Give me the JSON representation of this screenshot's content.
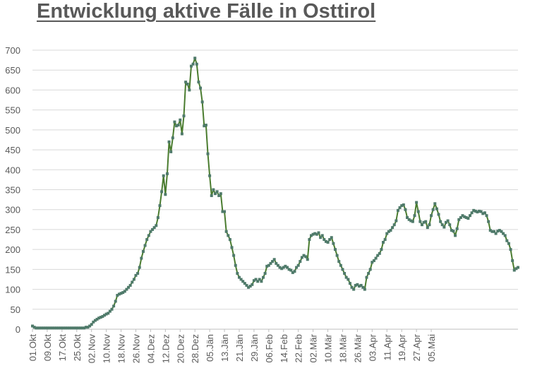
{
  "chart_data": {
    "type": "line",
    "title": "Entwicklung aktive Fälle in Osttirol",
    "xlabel": "",
    "ylabel": "",
    "ylim": [
      0,
      700
    ],
    "yticks": [
      0,
      50,
      100,
      150,
      200,
      250,
      300,
      350,
      400,
      450,
      500,
      550,
      600,
      650,
      700
    ],
    "grid": true,
    "legend": "none",
    "line_color": "#4a7c2f",
    "marker_color": "#4f7a6a",
    "xtick_labels": [
      "01.Okt",
      "09.Okt",
      "17.Okt",
      "25.Okt",
      "02.Nov",
      "10.Nov",
      "18.Nov",
      "26.Nov",
      "04.Dez",
      "12.Dez",
      "20.Dez",
      "28.Dez",
      "05.Jän",
      "13.Jän",
      "21.Jän",
      "29.Jän",
      "06.Feb",
      "14.Feb",
      "22.Feb",
      "02.Mär",
      "10.Mär",
      "18.Mär",
      "26.Mär",
      "03.Apr",
      "11.Apr",
      "19.Apr",
      "27.Apr",
      "05.Mai"
    ],
    "series": [
      {
        "x_start": "01.Okt",
        "x_end": "05.Mai",
        "values": [
          8,
          5,
          3,
          3,
          3,
          3,
          3,
          3,
          3,
          3,
          3,
          3,
          3,
          3,
          3,
          3,
          3,
          3,
          3,
          3,
          3,
          3,
          3,
          3,
          3,
          3,
          3,
          3,
          3,
          5,
          5,
          8,
          12,
          18,
          22,
          25,
          28,
          30,
          32,
          35,
          38,
          40,
          45,
          50,
          58,
          70,
          85,
          88,
          90,
          92,
          95,
          100,
          105,
          110,
          118,
          125,
          135,
          140,
          155,
          178,
          195,
          210,
          225,
          235,
          245,
          250,
          255,
          260,
          280,
          310,
          345,
          385,
          338,
          390,
          470,
          445,
          480,
          520,
          510,
          512,
          525,
          490,
          535,
          620,
          615,
          600,
          660,
          665,
          680,
          665,
          620,
          605,
          570,
          510,
          512,
          440,
          385,
          335,
          350,
          340,
          345,
          335,
          340,
          295,
          295,
          245,
          235,
          225,
          205,
          185,
          160,
          140,
          130,
          125,
          120,
          115,
          110,
          105,
          108,
          112,
          122,
          125,
          120,
          125,
          120,
          130,
          140,
          158,
          160,
          165,
          170,
          175,
          165,
          160,
          155,
          152,
          155,
          158,
          155,
          150,
          148,
          142,
          145,
          155,
          160,
          170,
          180,
          185,
          182,
          175,
          225,
          235,
          238,
          240,
          238,
          242,
          230,
          235,
          225,
          220,
          218,
          225,
          230,
          215,
          200,
          185,
          170,
          160,
          150,
          140,
          130,
          125,
          115,
          105,
          100,
          110,
          112,
          108,
          110,
          105,
          100,
          130,
          140,
          150,
          168,
          172,
          178,
          185,
          190,
          200,
          218,
          225,
          240,
          245,
          248,
          255,
          262,
          272,
          298,
          305,
          310,
          312,
          300,
          280,
          275,
          272,
          270,
          285,
          318,
          295,
          270,
          262,
          268,
          270,
          255,
          262,
          285,
          300,
          315,
          302,
          288,
          270,
          262,
          256,
          268,
          272,
          262,
          248,
          246,
          235,
          252,
          275,
          280,
          285,
          282,
          280,
          278,
          285,
          292,
          298,
          296,
          294,
          296,
          295,
          290,
          292,
          285,
          270,
          248,
          245,
          245,
          240,
          246,
          248,
          245,
          240,
          235,
          222,
          215,
          200,
          172,
          148,
          152,
          155
        ]
      }
    ]
  }
}
